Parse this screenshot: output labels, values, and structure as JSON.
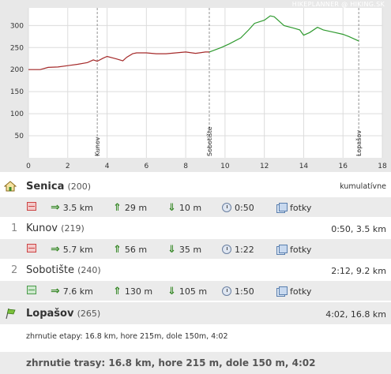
{
  "chart_data": {
    "type": "line",
    "branding": "HIKEPLANNER @ HIKING.SK",
    "xlim": [
      0,
      18
    ],
    "ylim": [
      0,
      340
    ],
    "x_ticks": [
      0,
      2,
      4,
      6,
      8,
      10,
      12,
      14,
      16,
      18
    ],
    "y_ticks": [
      50,
      100,
      150,
      200,
      250,
      300
    ],
    "grid": true,
    "waypoints": [
      {
        "label": "Kunov",
        "x": 3.5
      },
      {
        "label": "Sobotište",
        "x": 9.2
      },
      {
        "label": "Lopašov",
        "x": 16.8
      }
    ],
    "series": [
      {
        "color": "#a52a2a",
        "x": [
          0,
          0.6,
          1.0,
          1.5,
          2.0,
          2.5,
          3.0,
          3.3,
          3.5,
          3.8,
          4.0,
          4.5,
          4.8,
          5.0,
          5.3,
          5.5,
          6.0,
          6.5,
          7.0,
          7.5,
          8.0,
          8.5,
          9.0,
          9.2
        ],
        "y": [
          200,
          200,
          205,
          206,
          209,
          212,
          216,
          222,
          219,
          226,
          230,
          224,
          220,
          228,
          236,
          238,
          238,
          236,
          236,
          238,
          240,
          237,
          240,
          240
        ]
      },
      {
        "color": "#2f9a2f",
        "x": [
          9.2,
          9.8,
          10.2,
          10.8,
          11.2,
          11.5,
          12.0,
          12.3,
          12.5,
          12.8,
          13.0,
          13.5,
          13.8,
          14.0,
          14.3,
          14.7,
          15.0,
          15.5,
          16.0,
          16.3,
          16.8
        ],
        "y": [
          240,
          250,
          258,
          272,
          290,
          305,
          312,
          322,
          320,
          308,
          300,
          294,
          290,
          278,
          284,
          296,
          290,
          285,
          280,
          275,
          265
        ]
      }
    ]
  },
  "route": {
    "start": {
      "name": "Senica",
      "alt": "(200)",
      "right": "kumulatívne"
    },
    "seg1": {
      "dist": "3.5 km",
      "up": "29 m",
      "down": "10 m",
      "time": "0:50",
      "photos": "fotky"
    },
    "stop1": {
      "num": "1",
      "name": "Kunov",
      "alt": "(219)",
      "right": "0:50, 3.5 km"
    },
    "seg2": {
      "dist": "5.7 km",
      "up": "56 m",
      "down": "35 m",
      "time": "1:22",
      "photos": "fotky"
    },
    "stop2": {
      "num": "2",
      "name": "Sobotište",
      "alt": "(240)",
      "right": "2:12, 9.2 km"
    },
    "seg3": {
      "dist": "7.6 km",
      "up": "130 m",
      "down": "105 m",
      "time": "1:50",
      "photos": "fotky"
    },
    "end": {
      "name": "Lopašov",
      "alt": "(265)",
      "right": "4:02, 16.8 km"
    },
    "stage_summary": "zhrnutie etapy: 16.8 km, hore 215m, dole 150m, 4:02",
    "route_summary": "zhrnutie trasy: 16.8 km, hore 215 m, dole 150 m, 4:02"
  }
}
